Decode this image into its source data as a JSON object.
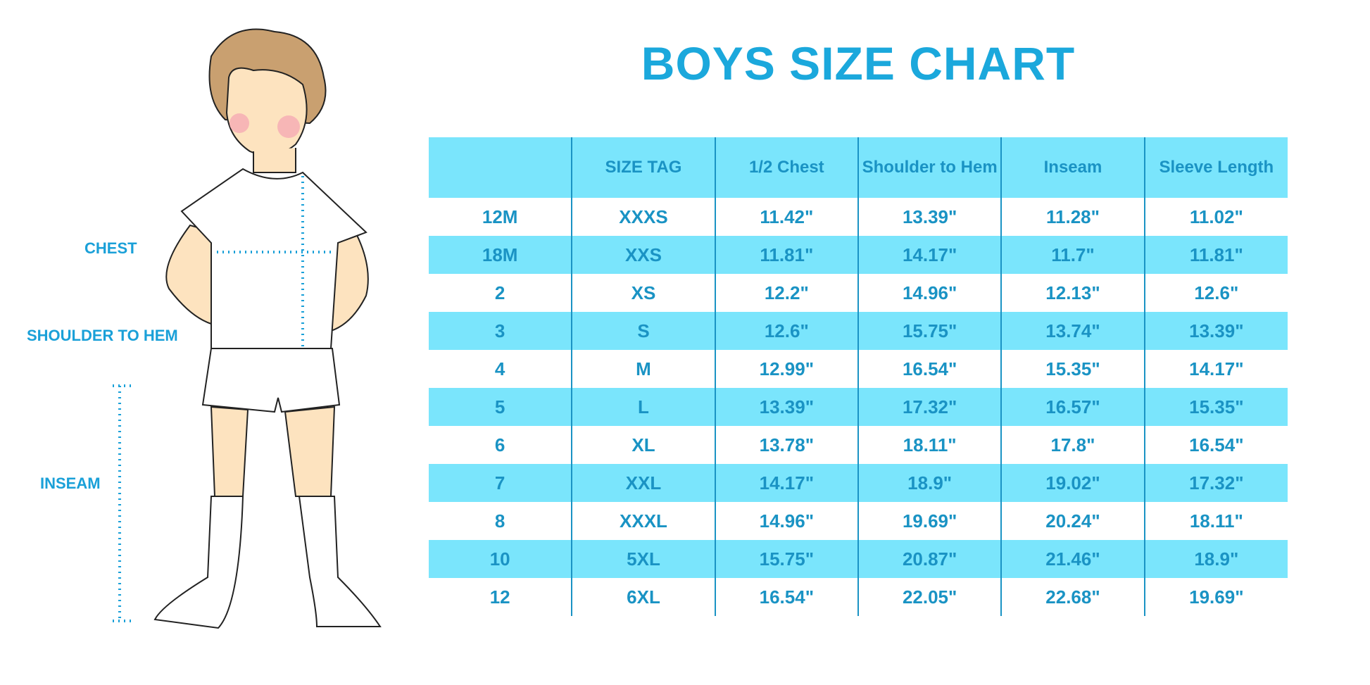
{
  "title": "BOYS SIZE CHART",
  "figure_labels": {
    "chest": "CHEST",
    "shoulder_to_hem": "SHOULDER TO HEM",
    "inseam": "INSEAM"
  },
  "colors": {
    "accent": "#1ba8dc",
    "row_fill": "#7ae5fc",
    "text": "#1a93c4"
  },
  "table": {
    "headers": [
      "",
      "SIZE TAG",
      "1/2 Chest",
      "Shoulder to Hem",
      "Inseam",
      "Sleeve Length"
    ],
    "rows": [
      [
        "12M",
        "XXXS",
        "11.42\"",
        "13.39\"",
        "11.28\"",
        "11.02\""
      ],
      [
        "18M",
        "XXS",
        "11.81\"",
        "14.17\"",
        "11.7\"",
        "11.81\""
      ],
      [
        "2",
        "XS",
        "12.2\"",
        "14.96\"",
        "12.13\"",
        "12.6\""
      ],
      [
        "3",
        "S",
        "12.6\"",
        "15.75\"",
        "13.74\"",
        "13.39\""
      ],
      [
        "4",
        "M",
        "12.99\"",
        "16.54\"",
        "15.35\"",
        "14.17\""
      ],
      [
        "5",
        "L",
        "13.39\"",
        "17.32\"",
        "16.57\"",
        "15.35\""
      ],
      [
        "6",
        "XL",
        "13.78\"",
        "18.11\"",
        "17.8\"",
        "16.54\""
      ],
      [
        "7",
        "XXL",
        "14.17\"",
        "18.9\"",
        "19.02\"",
        "17.32\""
      ],
      [
        "8",
        "XXXL",
        "14.96\"",
        "19.69\"",
        "20.24\"",
        "18.11\""
      ],
      [
        "10",
        "5XL",
        "15.75\"",
        "20.87\"",
        "21.46\"",
        "18.9\""
      ],
      [
        "12",
        "6XL",
        "16.54\"",
        "22.05\"",
        "22.68\"",
        "19.69\""
      ]
    ]
  }
}
